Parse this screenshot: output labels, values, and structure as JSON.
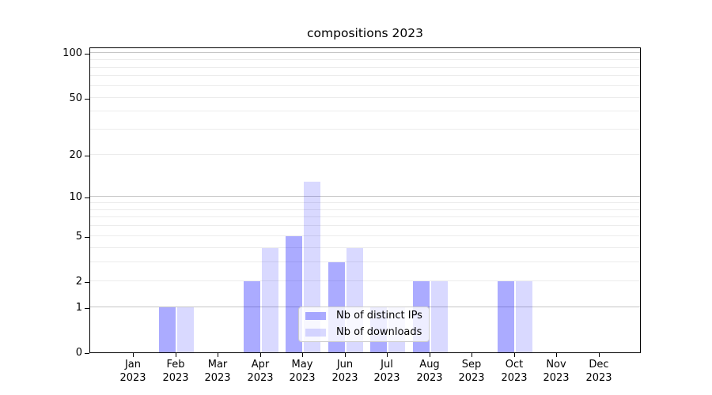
{
  "chart_data": {
    "type": "bar",
    "title": "compositions 2023",
    "categories": [
      {
        "month": "Jan",
        "year": "2023"
      },
      {
        "month": "Feb",
        "year": "2023"
      },
      {
        "month": "Mar",
        "year": "2023"
      },
      {
        "month": "Apr",
        "year": "2023"
      },
      {
        "month": "May",
        "year": "2023"
      },
      {
        "month": "Jun",
        "year": "2023"
      },
      {
        "month": "Jul",
        "year": "2023"
      },
      {
        "month": "Aug",
        "year": "2023"
      },
      {
        "month": "Sep",
        "year": "2023"
      },
      {
        "month": "Oct",
        "year": "2023"
      },
      {
        "month": "Nov",
        "year": "2023"
      },
      {
        "month": "Dec",
        "year": "2023"
      }
    ],
    "series": [
      {
        "name": "Nb of distinct IPs",
        "values": [
          0,
          1,
          0,
          2,
          5,
          3,
          1,
          2,
          0,
          2,
          0,
          0
        ],
        "color": "rgba(0,0,255,0.33)"
      },
      {
        "name": "Nb of downloads",
        "values": [
          0,
          1,
          0,
          4,
          13,
          4,
          1,
          2,
          0,
          2,
          0,
          0
        ],
        "color": "rgba(0,0,255,0.15)"
      }
    ],
    "xlabel": "",
    "ylabel": "",
    "y_scale": "log1p",
    "ylim": [
      0,
      110
    ],
    "y_ticks": [
      0,
      1,
      2,
      5,
      10,
      20,
      50,
      100
    ],
    "y_major_gridlines": [
      1,
      10,
      100
    ],
    "y_minor_gridlines": [
      2,
      3,
      4,
      5,
      6,
      7,
      8,
      9,
      20,
      30,
      40,
      50,
      60,
      70,
      80,
      90
    ],
    "grid": true,
    "legend": {
      "position": "lower center",
      "labels": [
        "Nb of distinct IPs",
        "Nb of downloads"
      ]
    }
  },
  "colors": {
    "bar_distinct_ips": "rgba(0,0,255,0.33)",
    "bar_downloads": "rgba(0,0,255,0.15)",
    "grid_major": "#c6c6c6",
    "grid_minor": "#ececec",
    "axis": "#000000",
    "legend_border": "#cccccc"
  }
}
